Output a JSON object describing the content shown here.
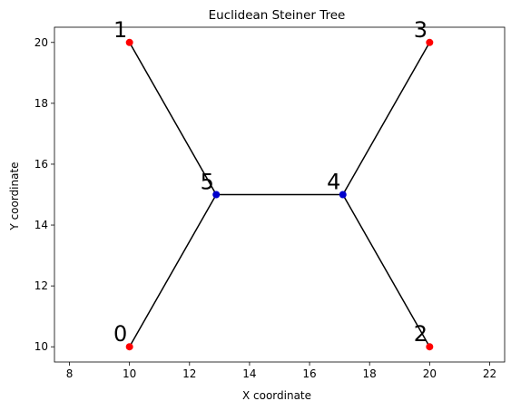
{
  "chart_data": {
    "type": "scatter",
    "title": "Euclidean Steiner Tree",
    "xlabel": "X coordinate",
    "ylabel": "Y coordinate",
    "xlim": [
      7.5,
      22.5
    ],
    "ylim": [
      9.5,
      20.5
    ],
    "xticks": [
      8,
      10,
      12,
      14,
      16,
      18,
      20,
      22
    ],
    "yticks": [
      10,
      12,
      14,
      16,
      18,
      20
    ],
    "grid": false,
    "legend": "none",
    "nodes": [
      {
        "id": "0",
        "x": 10,
        "y": 10,
        "kind": "terminal"
      },
      {
        "id": "1",
        "x": 10,
        "y": 20,
        "kind": "terminal"
      },
      {
        "id": "2",
        "x": 20,
        "y": 10,
        "kind": "terminal"
      },
      {
        "id": "3",
        "x": 20,
        "y": 20,
        "kind": "terminal"
      },
      {
        "id": "4",
        "x": 17.11,
        "y": 15,
        "kind": "steiner"
      },
      {
        "id": "5",
        "x": 12.89,
        "y": 15,
        "kind": "steiner"
      }
    ],
    "edges": [
      [
        "1",
        "5"
      ],
      [
        "0",
        "5"
      ],
      [
        "5",
        "4"
      ],
      [
        "4",
        "3"
      ],
      [
        "4",
        "2"
      ]
    ],
    "colors": {
      "terminal": "#ff0000",
      "steiner": "#0000cc",
      "edge": "#000000"
    }
  }
}
